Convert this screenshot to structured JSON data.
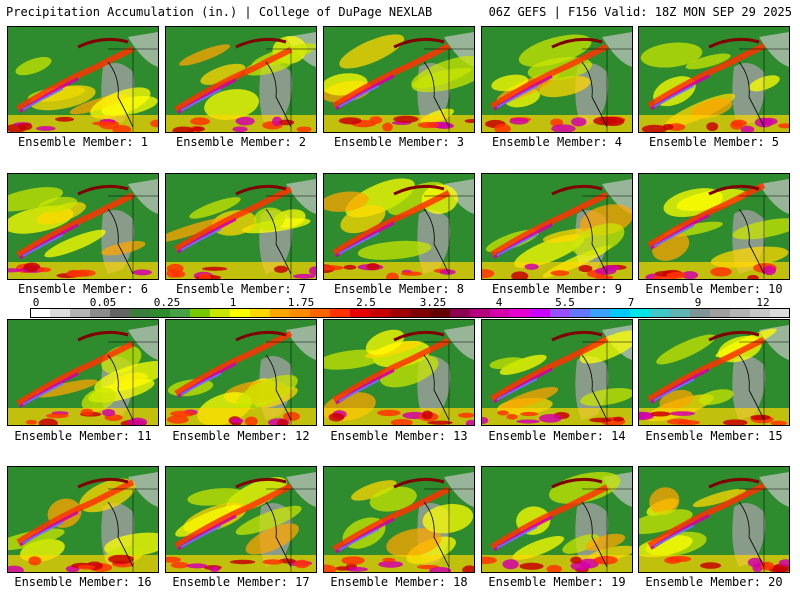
{
  "header": {
    "left_title": "Precipitation Accumulation (in.) | College of DuPage NEXLAB",
    "right_title": "06Z GEFS | F156 Valid: 18Z MON SEP 29 2025"
  },
  "members": [
    {
      "label": "Ensemble Member: 1"
    },
    {
      "label": "Ensemble Member: 2"
    },
    {
      "label": "Ensemble Member: 3"
    },
    {
      "label": "Ensemble Member: 4"
    },
    {
      "label": "Ensemble Member: 5"
    },
    {
      "label": "Ensemble Member: 6"
    },
    {
      "label": "Ensemble Member: 7"
    },
    {
      "label": "Ensemble Member: 8"
    },
    {
      "label": "Ensemble Member: 9"
    },
    {
      "label": "Ensemble Member: 10"
    },
    {
      "label": "Ensemble Member: 11"
    },
    {
      "label": "Ensemble Member: 12"
    },
    {
      "label": "Ensemble Member: 13"
    },
    {
      "label": "Ensemble Member: 14"
    },
    {
      "label": "Ensemble Member: 15"
    },
    {
      "label": "Ensemble Member: 16"
    },
    {
      "label": "Ensemble Member: 17"
    },
    {
      "label": "Ensemble Member: 18"
    },
    {
      "label": "Ensemble Member: 19"
    },
    {
      "label": "Ensemble Member: 20"
    }
  ],
  "colorbar": {
    "tick_labels": [
      "0",
      "0.05",
      "0.25",
      "1",
      "1.75",
      "2.5",
      "3.25",
      "4",
      "5.5",
      "7",
      "9",
      "12"
    ],
    "colors": [
      "#ffffff",
      "#dcdcdc",
      "#b4b4b4",
      "#8c8c8c",
      "#646464",
      "#3c7d3c",
      "#2e8b2e",
      "#46a046",
      "#78c800",
      "#c8e600",
      "#ffff00",
      "#ffd700",
      "#ffa500",
      "#ff8c00",
      "#ff6400",
      "#ff3200",
      "#e60000",
      "#c80000",
      "#a00000",
      "#800000",
      "#640000",
      "#8b0050",
      "#b4007d",
      "#d200aa",
      "#e600d2",
      "#c800ff",
      "#9650ff",
      "#6478ff",
      "#3ca0ff",
      "#00c8ff",
      "#00e6e6",
      "#40c8c8",
      "#60b4b4",
      "#809696",
      "#a0a0a0",
      "#b4b4b4",
      "#c8c8c8",
      "#dcdcdc"
    ]
  }
}
